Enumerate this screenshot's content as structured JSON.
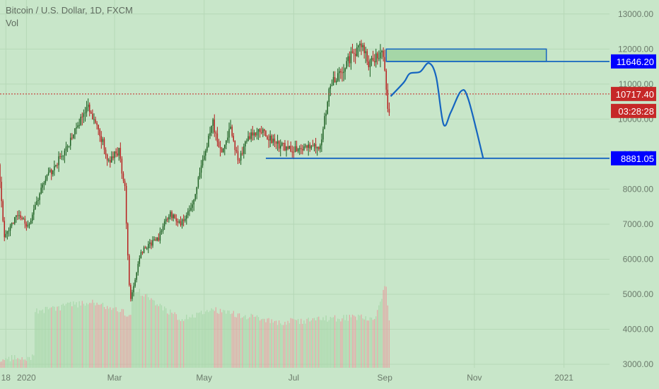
{
  "header": {
    "title": "Bitcoin / U.S. Dollar, 1D, FXCM",
    "volume_label": "Vol"
  },
  "colors": {
    "background": "#c8e6c9",
    "grid": "#b6d8b7",
    "up": "#1b5e20",
    "down": "#b71c1c",
    "drawing": "#1565c0",
    "price_tag": "#0000ff",
    "current_tag": "#c62828",
    "zone": "#a5d6a7"
  },
  "chart_data": {
    "type": "candlestick",
    "title": "Bitcoin / U.S. Dollar, 1D, FXCM",
    "y_ticks": [
      3000,
      4000,
      5000,
      6000,
      7000,
      8000,
      9000,
      10000,
      11000,
      12000,
      13000
    ],
    "y_tick_labels": [
      "3000.00",
      "4000.00",
      "5000.00",
      "6000.00",
      "7000.00",
      "8000.00",
      "9000.00",
      "10000.00",
      "11000.00",
      "12000.00",
      "13000.00"
    ],
    "ylim": [
      2900,
      13400
    ],
    "x_ticks": [
      {
        "date": "2019-12-18",
        "label": "18"
      },
      {
        "date": "2020-01-01",
        "label": "2020"
      },
      {
        "date": "2020-03-01",
        "label": "Mar"
      },
      {
        "date": "2020-05-01",
        "label": "May"
      },
      {
        "date": "2020-07-01",
        "label": "Jul"
      },
      {
        "date": "2020-09-01",
        "label": "Sep"
      },
      {
        "date": "2020-11-01",
        "label": "Nov"
      },
      {
        "date": "2021-01-01",
        "label": "2021"
      }
    ],
    "xlim": [
      "2019-12-14",
      "2021-02-01"
    ],
    "price_path": [
      [
        "2019-12-14",
        8700
      ],
      [
        "2019-12-18",
        6600
      ],
      [
        "2019-12-26",
        7250
      ],
      [
        "2019-12-31",
        7150
      ],
      [
        "2020-01-03",
        6950
      ],
      [
        "2020-01-14",
        8200
      ],
      [
        "2020-01-21",
        8650
      ],
      [
        "2020-02-01",
        9400
      ],
      [
        "2020-02-12",
        10400
      ],
      [
        "2020-02-20",
        9700
      ],
      [
        "2020-02-27",
        8800
      ],
      [
        "2020-03-05",
        9100
      ],
      [
        "2020-03-09",
        8000
      ],
      [
        "2020-03-12",
        5200
      ],
      [
        "2020-03-13",
        4800
      ],
      [
        "2020-03-20",
        6200
      ],
      [
        "2020-04-01",
        6600
      ],
      [
        "2020-04-08",
        7300
      ],
      [
        "2020-04-16",
        7050
      ],
      [
        "2020-04-24",
        7500
      ],
      [
        "2020-04-30",
        8700
      ],
      [
        "2020-05-08",
        9900
      ],
      [
        "2020-05-13",
        9050
      ],
      [
        "2020-05-20",
        9700
      ],
      [
        "2020-05-25",
        8800
      ],
      [
        "2020-06-01",
        9500
      ],
      [
        "2020-06-10",
        9700
      ],
      [
        "2020-06-20",
        9300
      ],
      [
        "2020-07-01",
        9100
      ],
      [
        "2020-07-10",
        9250
      ],
      [
        "2020-07-20",
        9200
      ],
      [
        "2020-07-27",
        11000
      ],
      [
        "2020-08-02",
        11300
      ],
      [
        "2020-08-10",
        11800
      ],
      [
        "2020-08-17",
        12100
      ],
      [
        "2020-08-22",
        11600
      ],
      [
        "2020-09-01",
        11900
      ],
      [
        "2020-09-03",
        10900
      ],
      [
        "2020-09-04",
        10300
      ]
    ],
    "volume_path": [
      [
        "2019-12-14",
        3150
      ],
      [
        "2020-01-06",
        3200
      ],
      [
        "2020-01-07",
        4500
      ],
      [
        "2020-02-15",
        4800
      ],
      [
        "2020-03-12",
        4400
      ],
      [
        "2020-03-13",
        5200
      ],
      [
        "2020-04-15",
        4300
      ],
      [
        "2020-05-10",
        4550
      ],
      [
        "2020-06-20",
        4200
      ],
      [
        "2020-07-25",
        4300
      ],
      [
        "2020-08-25",
        4350
      ],
      [
        "2020-09-02",
        5300
      ],
      [
        "2020-09-04",
        4200
      ]
    ],
    "current_price": 10717.4,
    "current_price_label": "10717.40",
    "countdown_label": "03:28:28",
    "levels": [
      {
        "value": 11646.2,
        "label": "11646.20",
        "from": "2020-09-02"
      },
      {
        "value": 8881.05,
        "label": "8881.05",
        "from": "2020-06-12"
      }
    ],
    "zone": {
      "from": "2020-09-02",
      "to": "2020-12-20",
      "y_low": 11646.2,
      "y_high": 12000
    },
    "projection_path": [
      [
        "2020-09-05",
        10650
      ],
      [
        "2020-09-14",
        11050
      ],
      [
        "2020-09-18",
        11300
      ],
      [
        "2020-09-25",
        11350
      ],
      [
        "2020-10-01",
        11600
      ],
      [
        "2020-10-06",
        11200
      ],
      [
        "2020-10-11",
        9850
      ],
      [
        "2020-10-16",
        10200
      ],
      [
        "2020-10-23",
        10800
      ],
      [
        "2020-10-28",
        10550
      ],
      [
        "2020-11-07",
        8881.05
      ]
    ],
    "grid": true
  }
}
